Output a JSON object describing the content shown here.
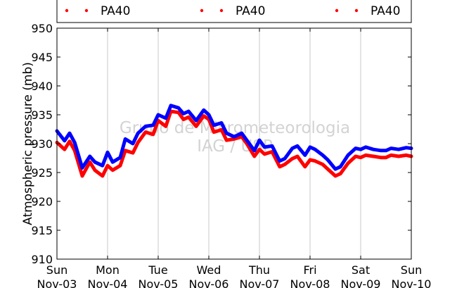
{
  "chart_data": {
    "type": "line",
    "title": "",
    "xlabel": "",
    "ylabel": "Atmospheric pressure (mb)",
    "ylim": [
      910,
      950
    ],
    "yticks": [
      910,
      915,
      920,
      925,
      930,
      935,
      940,
      945,
      950
    ],
    "xlim": [
      0,
      7
    ],
    "xticks": [
      {
        "day": "Sun",
        "date": "Nov-03"
      },
      {
        "day": "Mon",
        "date": "Nov-04"
      },
      {
        "day": "Tue",
        "date": "Nov-05"
      },
      {
        "day": "Wed",
        "date": "Nov-06"
      },
      {
        "day": "Thu",
        "date": "Nov-07"
      },
      {
        "day": "Fri",
        "date": "Nov-08"
      },
      {
        "day": "Sat",
        "date": "Nov-09"
      },
      {
        "day": "Sun",
        "date": "Nov-10"
      }
    ],
    "grid": "vertical",
    "legend_position": "top",
    "watermark": [
      "Grupo de Micrometeorologia",
      "IAG / USP"
    ],
    "legend": [
      {
        "label": "PA40",
        "color": "#ff0000"
      },
      {
        "label": "PA40",
        "color": "#ff0000"
      },
      {
        "label": "PA40",
        "color": "#ff0000"
      }
    ],
    "series": [
      {
        "color": "#0000ff",
        "x": [
          0,
          0.15,
          0.25,
          0.35,
          0.5,
          0.65,
          0.75,
          0.9,
          1.0,
          1.1,
          1.25,
          1.35,
          1.5,
          1.6,
          1.75,
          1.9,
          2.0,
          2.15,
          2.25,
          2.4,
          2.5,
          2.6,
          2.75,
          2.9,
          3.0,
          3.1,
          3.25,
          3.35,
          3.5,
          3.65,
          3.75,
          3.9,
          4.0,
          4.1,
          4.25,
          4.4,
          4.5,
          4.65,
          4.75,
          4.9,
          5.0,
          5.1,
          5.25,
          5.35,
          5.5,
          5.6,
          5.75,
          5.9,
          6.0,
          6.1,
          6.25,
          6.4,
          6.5,
          6.6,
          6.75,
          6.9,
          7.0
        ],
        "y": [
          932.2,
          930.5,
          931.8,
          930.2,
          925.8,
          927.8,
          926.8,
          926.2,
          928.5,
          926.8,
          927.6,
          930.8,
          930.0,
          931.8,
          933.0,
          933.2,
          935.0,
          934.4,
          936.6,
          936.2,
          935.2,
          935.6,
          934.0,
          935.8,
          935.0,
          933.2,
          933.6,
          931.8,
          931.2,
          931.8,
          930.6,
          928.8,
          930.6,
          929.4,
          929.6,
          927.0,
          927.4,
          929.2,
          929.6,
          928.0,
          929.4,
          929.0,
          928.0,
          927.2,
          925.6,
          926.0,
          928.0,
          929.2,
          929.0,
          929.4,
          929.0,
          928.8,
          928.8,
          929.2,
          929.0,
          929.3,
          929.2
        ]
      },
      {
        "color": "#ff0000",
        "x": [
          0,
          0.15,
          0.25,
          0.35,
          0.5,
          0.65,
          0.75,
          0.9,
          1.0,
          1.1,
          1.25,
          1.35,
          1.5,
          1.6,
          1.75,
          1.9,
          2.0,
          2.15,
          2.25,
          2.4,
          2.5,
          2.6,
          2.75,
          2.9,
          3.0,
          3.1,
          3.25,
          3.35,
          3.5,
          3.65,
          3.75,
          3.9,
          4.0,
          4.1,
          4.25,
          4.4,
          4.5,
          4.65,
          4.75,
          4.9,
          5.0,
          5.1,
          5.25,
          5.35,
          5.5,
          5.6,
          5.75,
          5.9,
          6.0,
          6.1,
          6.25,
          6.4,
          6.5,
          6.6,
          6.75,
          6.9,
          7.0
        ],
        "y": [
          930.2,
          929.0,
          930.4,
          928.8,
          924.4,
          926.8,
          925.4,
          924.4,
          926.2,
          925.4,
          926.2,
          928.8,
          928.4,
          930.2,
          932.0,
          931.6,
          934.0,
          933.0,
          935.6,
          935.4,
          934.2,
          934.6,
          933.0,
          934.8,
          934.2,
          932.0,
          932.4,
          930.6,
          930.8,
          931.2,
          930.0,
          927.8,
          929.0,
          928.2,
          928.6,
          926.0,
          926.4,
          927.4,
          927.8,
          926.0,
          927.2,
          927.0,
          926.4,
          925.6,
          924.4,
          924.8,
          926.6,
          927.8,
          927.6,
          928.0,
          927.8,
          927.6,
          927.6,
          928.0,
          927.8,
          928.0,
          927.8
        ]
      }
    ]
  }
}
